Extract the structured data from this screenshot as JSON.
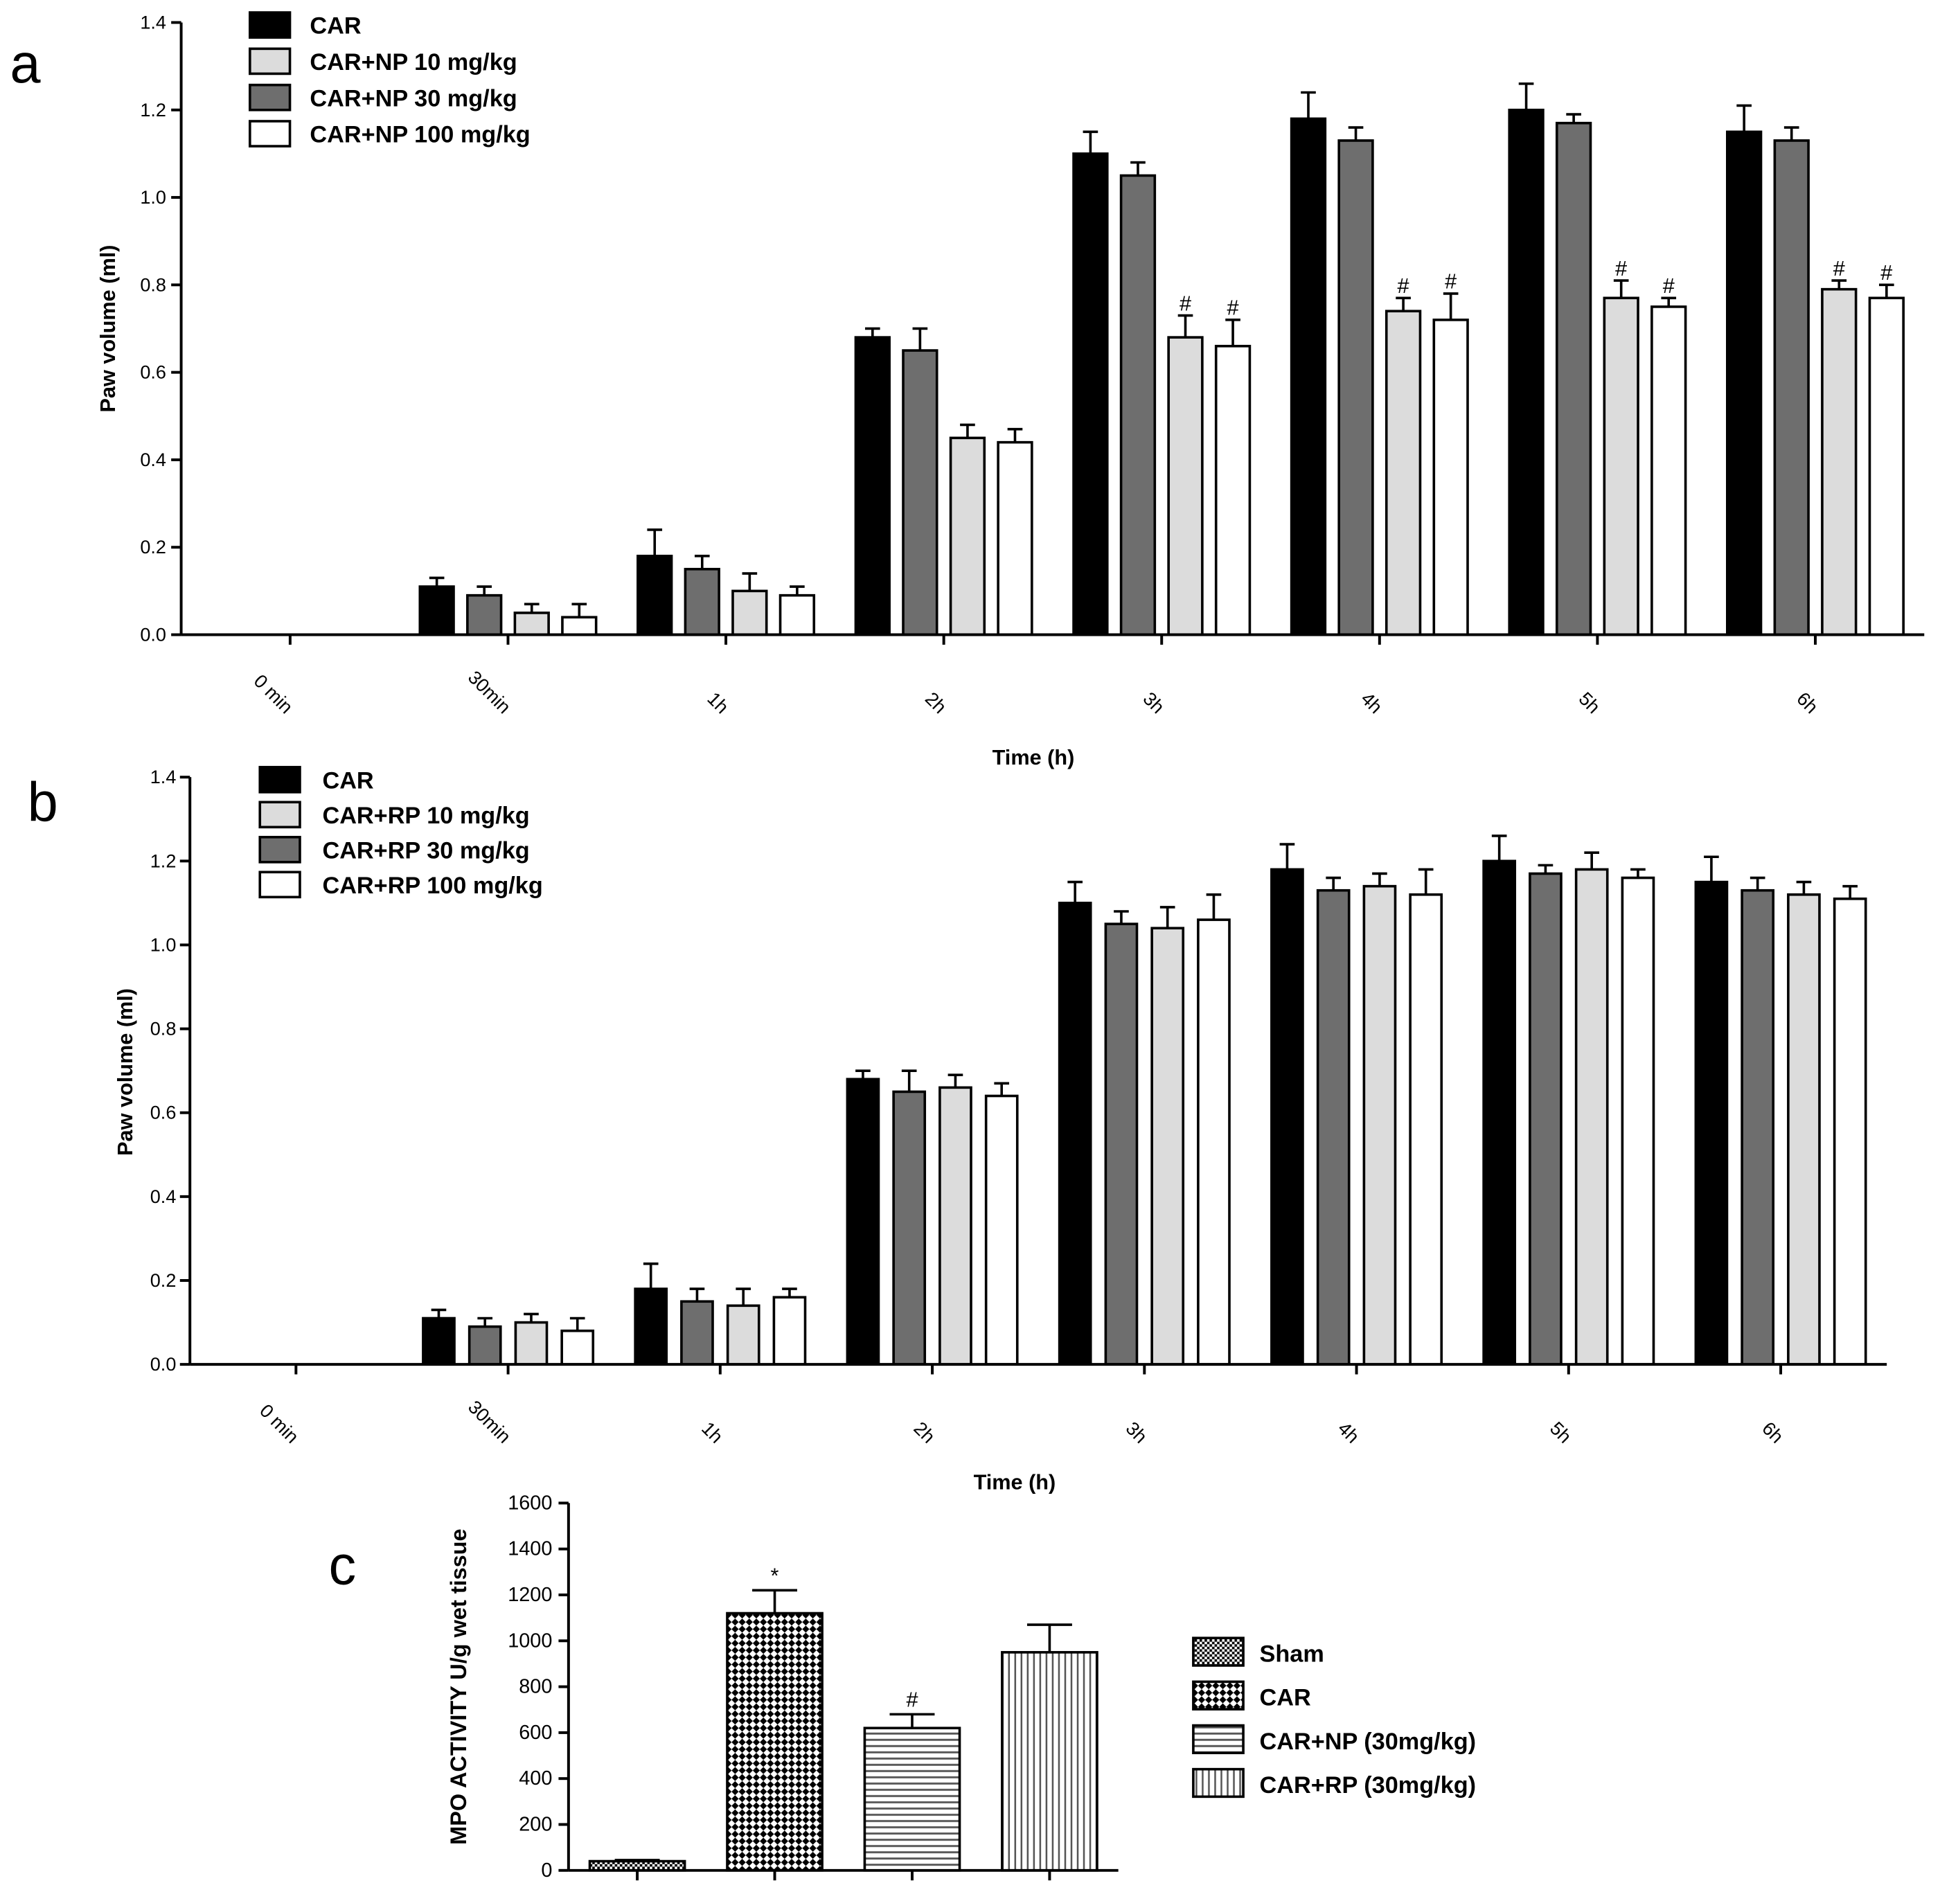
{
  "chart_data": [
    {
      "panel_label": "a",
      "type": "bar",
      "title": "",
      "xlabel": "Time (h)",
      "ylabel": "Paw volume (ml)",
      "ylim": [
        0,
        1.4
      ],
      "yticks": [
        "0.0",
        "0.2",
        "0.4",
        "0.6",
        "0.8",
        "1.0",
        "1.2",
        "1.4"
      ],
      "grid": false,
      "legend_position": "top-left",
      "categories": [
        "0 min",
        "30min",
        "1h",
        "2h",
        "3h",
        "4h",
        "5h",
        "6h"
      ],
      "series": [
        {
          "name": "CAR",
          "color": "#000000",
          "values": [
            0,
            0.11,
            0.18,
            0.68,
            1.1,
            1.18,
            1.2,
            1.15
          ],
          "error": [
            0,
            0.02,
            0.06,
            0.02,
            0.05,
            0.06,
            0.06,
            0.06
          ],
          "marks": [
            "",
            "",
            "",
            "",
            "",
            "",
            "",
            ""
          ]
        },
        {
          "name": "CAR+NP 10 mg/kg",
          "color": "#dcdcdc",
          "values": [
            0,
            0.05,
            0.1,
            0.45,
            0.68,
            0.74,
            0.77,
            0.79
          ],
          "error": [
            0,
            0.02,
            0.04,
            0.03,
            0.05,
            0.03,
            0.04,
            0.02
          ],
          "marks": [
            "",
            "",
            "",
            "",
            "#",
            "#",
            "#",
            "#"
          ]
        },
        {
          "name": "CAR+NP 30 mg/kg",
          "color": "#6e6e6e",
          "values": [
            0,
            0.09,
            0.15,
            0.65,
            1.05,
            1.13,
            1.17,
            1.13
          ],
          "error": [
            0,
            0.02,
            0.03,
            0.05,
            0.03,
            0.03,
            0.02,
            0.03
          ],
          "marks": [
            "",
            "",
            "",
            "",
            "",
            "",
            "",
            ""
          ]
        },
        {
          "name": "CAR+NP 100 mg/kg",
          "color": "#ffffff",
          "values": [
            0,
            0.04,
            0.09,
            0.44,
            0.66,
            0.72,
            0.75,
            0.77
          ],
          "error": [
            0,
            0.03,
            0.02,
            0.03,
            0.06,
            0.06,
            0.02,
            0.03
          ],
          "marks": [
            "",
            "",
            "",
            "",
            "#",
            "#",
            "#",
            "#"
          ]
        }
      ]
    },
    {
      "panel_label": "b",
      "type": "bar",
      "title": "",
      "xlabel": "Time (h)",
      "ylabel": "Paw volume (ml)",
      "ylim": [
        0,
        1.4
      ],
      "yticks": [
        "0.0",
        "0.2",
        "0.4",
        "0.6",
        "0.8",
        "1.0",
        "1.2",
        "1.4"
      ],
      "grid": false,
      "legend_position": "top-left",
      "categories": [
        "0 min",
        "30min",
        "1h",
        "2h",
        "3h",
        "4h",
        "5h",
        "6h"
      ],
      "series": [
        {
          "name": "CAR",
          "color": "#000000",
          "values": [
            0,
            0.11,
            0.18,
            0.68,
            1.1,
            1.18,
            1.2,
            1.15
          ],
          "error": [
            0,
            0.02,
            0.06,
            0.02,
            0.05,
            0.06,
            0.06,
            0.06
          ],
          "marks": [
            "",
            "",
            "",
            "",
            "",
            "",
            "",
            ""
          ]
        },
        {
          "name": "CAR+RP 10 mg/kg",
          "color": "#dcdcdc",
          "values": [
            0,
            0.1,
            0.14,
            0.66,
            1.04,
            1.14,
            1.18,
            1.12
          ],
          "error": [
            0,
            0.02,
            0.04,
            0.03,
            0.05,
            0.03,
            0.04,
            0.03
          ],
          "marks": [
            "",
            "",
            "",
            "",
            "",
            "",
            "",
            ""
          ]
        },
        {
          "name": "CAR+RP 30 mg/kg",
          "color": "#6e6e6e",
          "values": [
            0,
            0.09,
            0.15,
            0.65,
            1.05,
            1.13,
            1.17,
            1.13
          ],
          "error": [
            0,
            0.02,
            0.03,
            0.05,
            0.03,
            0.03,
            0.02,
            0.03
          ],
          "marks": [
            "",
            "",
            "",
            "",
            "",
            "",
            "",
            ""
          ]
        },
        {
          "name": "CAR+RP 100 mg/kg",
          "color": "#ffffff",
          "values": [
            0,
            0.08,
            0.16,
            0.64,
            1.06,
            1.12,
            1.16,
            1.11
          ],
          "error": [
            0,
            0.03,
            0.02,
            0.03,
            0.06,
            0.06,
            0.02,
            0.03
          ],
          "marks": [
            "",
            "",
            "",
            "",
            "",
            "",
            "",
            ""
          ]
        }
      ]
    },
    {
      "panel_label": "c",
      "type": "bar",
      "title": "",
      "xlabel": "",
      "ylabel": "MPO ACTIVITY U/g wet tissue",
      "ylim": [
        0,
        1600
      ],
      "yticks": [
        "0",
        "200",
        "400",
        "600",
        "800",
        "1000",
        "1200",
        "1400",
        "1600"
      ],
      "grid": false,
      "legend_position": "right",
      "categories": [
        "Sham",
        "CAR",
        "CAR+NP (30mg/kg)",
        "CAR+RP (30mg/kg)"
      ],
      "values": [
        40,
        1120,
        620,
        950
      ],
      "error": [
        5,
        100,
        60,
        120
      ],
      "marks": [
        "",
        "*",
        "#",
        ""
      ],
      "patterns": [
        "fine-checker",
        "diamond-checker",
        "horizontal-lines",
        "vertical-lines"
      ]
    }
  ]
}
